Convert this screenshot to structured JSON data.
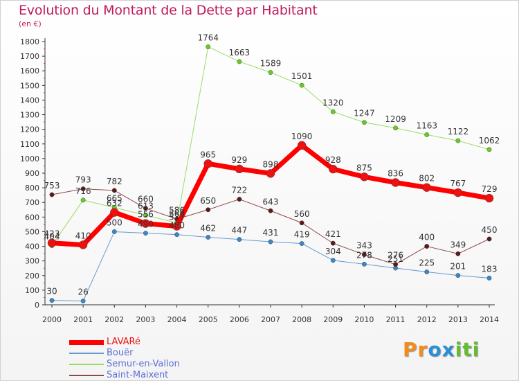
{
  "title": "Evolution du Montant de la Dette par Habitant",
  "subtitle": "(en €)",
  "chart_data": {
    "type": "line",
    "title": "Evolution du Montant de la Dette par Habitant",
    "subtitle": "(en €)",
    "x": [
      "2000",
      "2001",
      "2002",
      "2003",
      "2004",
      "2005",
      "2006",
      "2007",
      "2008",
      "2009",
      "2010",
      "2011",
      "2012",
      "2013",
      "2014"
    ],
    "ylim": [
      0,
      1800
    ],
    "yticks": [
      0,
      100,
      200,
      300,
      400,
      500,
      600,
      700,
      800,
      900,
      1000,
      1100,
      1200,
      1300,
      1400,
      1500,
      1600,
      1700,
      1800
    ],
    "grid": false,
    "legend_position": "bottom-left",
    "series": [
      {
        "name": "Bouër",
        "color": "#6699cc",
        "dot": "#3a88c8",
        "width": 1,
        "dotsize": 3.2,
        "textcolor": "#5b6fd6",
        "values": [
          30,
          26,
          500,
          490,
          480,
          462,
          447,
          431,
          419,
          304,
          278,
          251,
          225,
          201,
          183
        ],
        "labels": [
          "30",
          "26",
          "500",
          "490",
          "480",
          "462",
          "447",
          "431",
          "419",
          "304",
          "278",
          "251",
          "225",
          "201",
          "183"
        ]
      },
      {
        "name": "Semur-en-Vallon",
        "color": "#99dd66",
        "dot": "#66cc22",
        "width": 1,
        "dotsize": 3.2,
        "textcolor": "#5b6fd6",
        "values": [
          404,
          716,
          665,
          613,
          560,
          1764,
          1663,
          1589,
          1501,
          1320,
          1247,
          1209,
          1163,
          1122,
          1062
        ],
        "labels": [
          "404",
          "716",
          "665",
          "613",
          "560",
          "1764",
          "1663",
          "1589",
          "1501",
          "1320",
          "1247",
          "1209",
          "1163",
          "1122",
          "1062"
        ]
      },
      {
        "name": "Saint-Maixent",
        "color": "#8b4a4a",
        "dot": "#5a1a1a",
        "width": 1,
        "dotsize": 3.2,
        "textcolor": "#5b6fd6",
        "values": [
          753,
          793,
          782,
          660,
          586,
          650,
          722,
          643,
          560,
          421,
          343,
          276,
          400,
          349,
          450
        ],
        "labels": [
          "753",
          "793",
          "782",
          "660",
          "586",
          "650",
          "722",
          "643",
          "560",
          "421",
          "343",
          "276",
          "400",
          "349",
          "450"
        ]
      },
      {
        "name": "LAVARé",
        "color": "#ff0000",
        "dot": "#ee1111",
        "width": 7,
        "dotsize": 6,
        "textcolor": "#ee1111",
        "values": [
          423,
          410,
          632,
          556,
          537,
          965,
          929,
          898,
          1090,
          928,
          875,
          836,
          802,
          767,
          729
        ],
        "labels": [
          "423",
          "410",
          "632",
          "556",
          "537",
          "965",
          "929",
          "898",
          "1090",
          "928",
          "875",
          "836",
          "802",
          "767",
          "729"
        ]
      }
    ],
    "legend_order": [
      "LAVARé",
      "Bouër",
      "Semur-en-Vallon",
      "Saint-Maixent"
    ]
  },
  "legend": [
    {
      "name": "LAVARé",
      "color": "#ff0000",
      "textcolor": "#ee1111",
      "thickness": 7
    },
    {
      "name": "Bouër",
      "color": "#6699cc",
      "textcolor": "#5b6fd6",
      "thickness": 2
    },
    {
      "name": "Semur-en-Vallon",
      "color": "#99dd66",
      "textcolor": "#5b6fd6",
      "thickness": 2
    },
    {
      "name": "Saint-Maixent",
      "color": "#8b4a4a",
      "textcolor": "#5b6fd6",
      "thickness": 2
    }
  ],
  "logo": {
    "text": "Proxiti",
    "letters": [
      "P",
      "r",
      "o",
      "x",
      "i",
      "t",
      "i"
    ],
    "colors": [
      "#f28c1e",
      "#f28c1e",
      "#2a8fd6",
      "#2a8fd6",
      "#66bb33",
      "#66bb33",
      "#66bb33"
    ]
  }
}
